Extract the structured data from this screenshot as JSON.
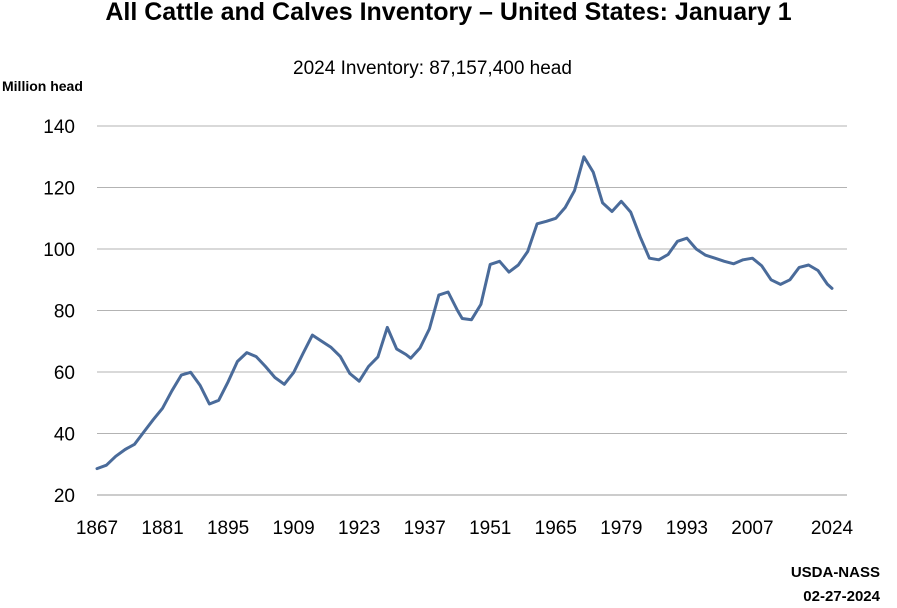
{
  "chart_data": {
    "type": "line",
    "title": "All Cattle and Calves Inventory – United States: January 1",
    "subtitle": "2024 Inventory: 87,157,400 head",
    "ylabel": "Million head",
    "xlabel": "",
    "ylim": [
      20,
      140
    ],
    "yticks": [
      20,
      40,
      60,
      80,
      100,
      120,
      140
    ],
    "xlim": [
      1867,
      2024
    ],
    "xticks": [
      1867,
      1881,
      1895,
      1909,
      1923,
      1937,
      1951,
      1965,
      1979,
      1993,
      2007,
      2024
    ],
    "grid": true,
    "series": [
      {
        "name": "All cattle and calves",
        "color": "#4a6b9a",
        "x": [
          1867,
          1869,
          1871,
          1873,
          1875,
          1877,
          1879,
          1881,
          1883,
          1885,
          1887,
          1889,
          1891,
          1893,
          1895,
          1897,
          1899,
          1901,
          1903,
          1905,
          1907,
          1909,
          1911,
          1913,
          1915,
          1917,
          1919,
          1921,
          1923,
          1925,
          1927,
          1929,
          1931,
          1933,
          1934,
          1936,
          1938,
          1940,
          1942,
          1944,
          1945,
          1947,
          1949,
          1951,
          1953,
          1955,
          1957,
          1959,
          1961,
          1963,
          1965,
          1967,
          1969,
          1971,
          1973,
          1975,
          1977,
          1979,
          1981,
          1983,
          1985,
          1987,
          1989,
          1991,
          1993,
          1995,
          1997,
          1999,
          2001,
          2003,
          2005,
          2007,
          2009,
          2011,
          2013,
          2015,
          2017,
          2019,
          2021,
          2023,
          2024
        ],
        "values": [
          28.6,
          29.7,
          32.6,
          34.8,
          36.5,
          40.5,
          44.5,
          48.2,
          53.9,
          59.0,
          59.9,
          55.7,
          49.6,
          50.8,
          56.8,
          63.4,
          66.3,
          65.0,
          61.8,
          58.2,
          56.0,
          59.8,
          66.0,
          72.0,
          70.0,
          68.0,
          65.0,
          59.5,
          57.0,
          61.8,
          64.9,
          74.5,
          67.5,
          65.7,
          64.5,
          67.8,
          74.0,
          85.0,
          86.0,
          80.0,
          77.4,
          77.0,
          82.0,
          95.0,
          96.0,
          92.5,
          94.8,
          99.2,
          108.2,
          109.0,
          110.0,
          113.5,
          119.0,
          130.0,
          125.0,
          115.0,
          112.2,
          115.5,
          112.0,
          104.0,
          97.0,
          96.5,
          98.2,
          102.5,
          103.5,
          100.0,
          98.0,
          97.0,
          96.0,
          95.2,
          96.5,
          97.0,
          94.5,
          90.0,
          88.5,
          90.0,
          94.0,
          94.8,
          93.0,
          88.6,
          87.2
        ]
      }
    ]
  },
  "source": {
    "agency": "USDA-NASS",
    "date": "02-27-2024"
  }
}
